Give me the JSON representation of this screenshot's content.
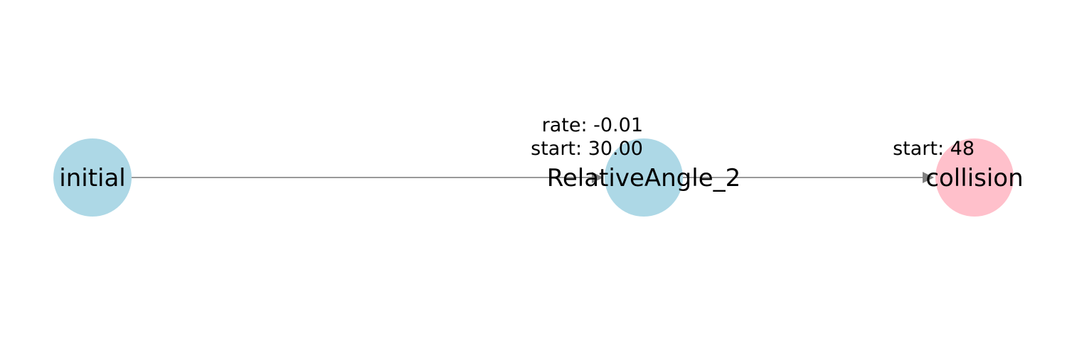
{
  "diagram": {
    "nodes": [
      {
        "id": "initial",
        "label": "initial",
        "color": "#add8e6"
      },
      {
        "id": "relativeangle_2",
        "label": "RelativeAngle_2",
        "color": "#add8e6"
      },
      {
        "id": "collision",
        "label": "collision",
        "color": "#ffc0cb"
      }
    ],
    "edges": [
      {
        "from": "initial",
        "to": "relativeangle_2",
        "label_line_1": "rate: -0.01",
        "label_line_2": "start: 30.00"
      },
      {
        "from": "relativeangle_2",
        "to": "collision",
        "label_line_1": "start: 48"
      }
    ],
    "colors": {
      "edge": "#999999",
      "arrowhead": "#808080",
      "text": "#000000"
    }
  }
}
